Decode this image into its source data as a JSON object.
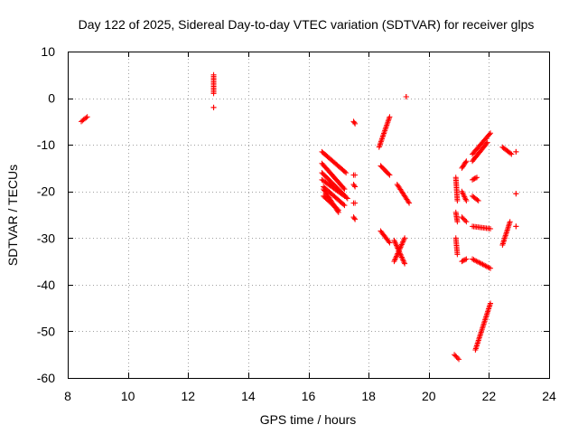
{
  "chart_data": {
    "type": "scatter",
    "title": "Day 122 of 2025, Sidereal Day-to-day VTEC variation (SDTVAR) for receiver glps",
    "xlabel": "GPS time / hours",
    "ylabel": "SDTVAR / TECUs",
    "xlim": [
      8,
      24
    ],
    "ylim": [
      -60,
      10
    ],
    "xticks": [
      "8",
      "10",
      "12",
      "14",
      "16",
      "18",
      "20",
      "22",
      "24"
    ],
    "yticks": [
      "10",
      "0",
      "-10",
      "-20",
      "-30",
      "-40",
      "-50",
      "-60"
    ],
    "grid": true,
    "marker": "+",
    "color": "#ff0000",
    "series": [
      {
        "name": "SDTVAR",
        "segments": [
          [
            [
              8.45,
              -5.0
            ],
            [
              8.65,
              -4.0
            ]
          ],
          [
            [
              12.85,
              5.0
            ],
            [
              12.85,
              1.0
            ]
          ],
          [
            [
              12.85,
              -2.0
            ],
            [
              12.85,
              -2.0
            ]
          ],
          [
            [
              16.45,
              -11.5
            ],
            [
              17.25,
              -16.0
            ]
          ],
          [
            [
              16.45,
              -14.0
            ],
            [
              17.2,
              -19.5
            ]
          ],
          [
            [
              16.45,
              -16.0
            ],
            [
              17.3,
              -21.5
            ]
          ],
          [
            [
              16.45,
              -17.5
            ],
            [
              17.2,
              -21.0
            ]
          ],
          [
            [
              16.5,
              -19.0
            ],
            [
              17.2,
              -23.0
            ]
          ],
          [
            [
              16.5,
              -19.5
            ],
            [
              17.0,
              -24.5
            ]
          ],
          [
            [
              16.5,
              -21.0
            ],
            [
              17.0,
              -24.0
            ]
          ],
          [
            [
              17.5,
              -5.0
            ],
            [
              17.55,
              -5.5
            ]
          ],
          [
            [
              17.5,
              -16.5
            ],
            [
              17.55,
              -16.5
            ]
          ],
          [
            [
              17.5,
              -18.5
            ],
            [
              17.55,
              -19.0
            ]
          ],
          [
            [
              17.5,
              -22.5
            ],
            [
              17.55,
              -22.5
            ]
          ],
          [
            [
              17.5,
              -25.5
            ],
            [
              17.55,
              -26.0
            ]
          ],
          [
            [
              18.35,
              -10.5
            ],
            [
              18.7,
              -4.0
            ]
          ],
          [
            [
              18.4,
              -14.5
            ],
            [
              18.7,
              -16.5
            ]
          ],
          [
            [
              18.4,
              -28.5
            ],
            [
              18.7,
              -31.0
            ]
          ],
          [
            [
              18.85,
              -30.5
            ],
            [
              19.2,
              -35.5
            ]
          ],
          [
            [
              18.85,
              -35.0
            ],
            [
              19.2,
              -30.0
            ]
          ],
          [
            [
              18.95,
              -18.5
            ],
            [
              19.35,
              -22.5
            ]
          ],
          [
            [
              19.25,
              0.3
            ],
            [
              19.25,
              0.3
            ]
          ],
          [
            [
              20.9,
              -17.0
            ],
            [
              20.95,
              -22.0
            ]
          ],
          [
            [
              20.9,
              -24.5
            ],
            [
              20.95,
              -26.5
            ]
          ],
          [
            [
              20.9,
              -30.0
            ],
            [
              20.95,
              -33.5
            ]
          ],
          [
            [
              20.85,
              -55.0
            ],
            [
              21.0,
              -56.0
            ]
          ],
          [
            [
              21.1,
              -15.0
            ],
            [
              21.25,
              -13.5
            ]
          ],
          [
            [
              21.1,
              -20.0
            ],
            [
              21.25,
              -22.0
            ]
          ],
          [
            [
              21.1,
              -25.5
            ],
            [
              21.25,
              -26.5
            ]
          ],
          [
            [
              21.1,
              -35.0
            ],
            [
              21.25,
              -34.5
            ]
          ],
          [
            [
              21.45,
              -12.0
            ],
            [
              22.05,
              -7.5
            ]
          ],
          [
            [
              21.45,
              -13.5
            ],
            [
              21.95,
              -9.5
            ]
          ],
          [
            [
              21.45,
              -17.5
            ],
            [
              21.6,
              -17.0
            ]
          ],
          [
            [
              21.45,
              -21.0
            ],
            [
              21.65,
              -22.0
            ]
          ],
          [
            [
              21.45,
              -27.5
            ],
            [
              22.05,
              -28.0
            ]
          ],
          [
            [
              21.45,
              -34.5
            ],
            [
              22.05,
              -36.5
            ]
          ],
          [
            [
              21.55,
              -54.0
            ],
            [
              22.05,
              -44.0
            ]
          ],
          [
            [
              22.45,
              -10.5
            ],
            [
              22.75,
              -12.0
            ]
          ],
          [
            [
              22.45,
              -31.5
            ],
            [
              22.7,
              -26.5
            ]
          ],
          [
            [
              22.9,
              -11.5
            ],
            [
              22.9,
              -11.5
            ]
          ],
          [
            [
              22.9,
              -20.5
            ],
            [
              22.9,
              -20.5
            ]
          ],
          [
            [
              22.9,
              -27.5
            ],
            [
              22.9,
              -27.5
            ]
          ]
        ]
      }
    ]
  }
}
